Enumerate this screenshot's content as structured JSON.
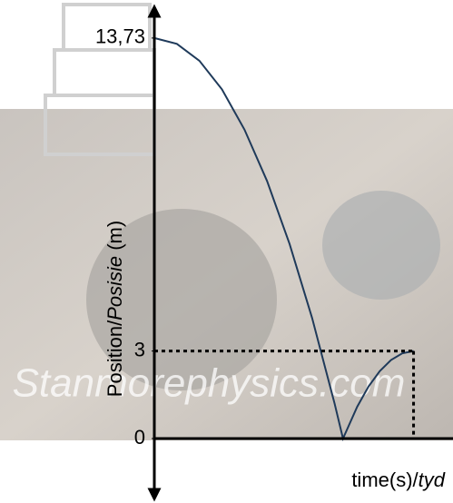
{
  "chart_data": {
    "type": "line",
    "watermark": "Stanmorephysics.com",
    "y_label_parts": [
      "Position/",
      "Posisie",
      " (m)"
    ],
    "x_label_parts": [
      "time(s)/",
      "tyd"
    ],
    "x": [
      0,
      0.2,
      0.4,
      0.6,
      0.8,
      1.0,
      1.2,
      1.4,
      1.6,
      1.674,
      1.8,
      1.9,
      2.0,
      2.1,
      2.2,
      2.3
    ],
    "series": [
      {
        "color": "#1f3a5a",
        "values": [
          13.73,
          13.53,
          12.95,
          11.97,
          10.59,
          8.83,
          6.67,
          4.13,
          1.19,
          0,
          1.09,
          1.78,
          2.31,
          2.69,
          2.92,
          3
        ]
      }
    ],
    "xlim": [
      0,
      2.65
    ],
    "ylim": [
      -1.93,
      14.66
    ],
    "yticks": [
      0,
      3,
      {
        "value": 13.73,
        "label": "13,73"
      }
    ]
  }
}
